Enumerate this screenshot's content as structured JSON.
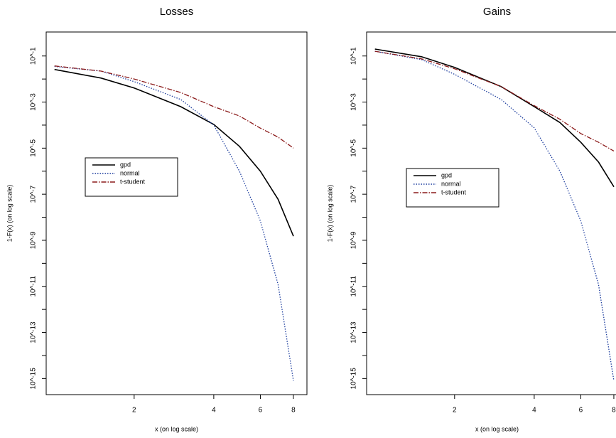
{
  "chart_data": [
    {
      "type": "line",
      "title": "Losses",
      "xlabel": "x (on log scale)",
      "ylabel": "1-F(x) (on log scale)",
      "xscale": "log",
      "yscale": "log",
      "x": [
        1,
        1.5,
        2,
        3,
        4,
        5,
        6,
        7,
        8
      ],
      "series": [
        {
          "name": "gpd",
          "color": "#000000",
          "style": "solid",
          "values": [
            0.026,
            0.011,
            0.0041,
            0.00063,
            0.000107,
            1.2e-05,
            1e-06,
            6e-08,
            1.5e-09
          ]
        },
        {
          "name": "normal",
          "color": "#1f3f9f",
          "style": "dotted",
          "values": [
            0.035,
            0.022,
            0.0077,
            0.0013,
            0.0001,
            1e-06,
            7e-09,
            1.2e-11,
            8e-16
          ]
        },
        {
          "name": "t-student",
          "color": "#8b1a1a",
          "style": "dashdot",
          "values": [
            0.037,
            0.022,
            0.01,
            0.0026,
            0.00063,
            0.00025,
            7.4e-05,
            3e-05,
            1e-05
          ]
        }
      ],
      "xlim": [
        0.93,
        9
      ],
      "ylim": [
        2e-16,
        1.1
      ],
      "xticks": [
        2,
        4,
        6,
        8
      ],
      "yticks": [
        {
          "value": 0.1,
          "label": "10^-1"
        },
        {
          "value": 0.01,
          "label": null
        },
        {
          "value": 0.001,
          "label": "10^-3"
        },
        {
          "value": 0.0001,
          "label": null
        },
        {
          "value": 1e-05,
          "label": "10^-5"
        },
        {
          "value": 1e-06,
          "label": null
        },
        {
          "value": 1e-07,
          "label": "10^-7"
        },
        {
          "value": 1e-08,
          "label": null
        },
        {
          "value": 1e-09,
          "label": "10^-9"
        },
        {
          "value": 1e-10,
          "label": null
        },
        {
          "value": 1e-11,
          "label": "10^-11"
        },
        {
          "value": 1e-12,
          "label": null
        },
        {
          "value": 1e-13,
          "label": "10^-13"
        },
        {
          "value": 1e-14,
          "label": null
        },
        {
          "value": 1e-15,
          "label": "10^-15"
        }
      ]
    },
    {
      "type": "line",
      "title": "Gains",
      "xlabel": "x (on log scale)",
      "ylabel": "1-F(x) (on log scale)",
      "xscale": "log",
      "yscale": "log",
      "x": [
        1,
        1.5,
        2,
        3,
        4,
        5,
        6,
        7,
        8
      ],
      "series": [
        {
          "name": "gpd",
          "color": "#000000",
          "style": "solid",
          "values": [
            0.2,
            0.093,
            0.032,
            0.0047,
            0.00063,
            0.00013,
            1.8e-05,
            2.5e-06,
            2.1e-07
          ]
        },
        {
          "name": "normal",
          "color": "#1f3f9f",
          "style": "dotted",
          "values": [
            0.16,
            0.07,
            0.016,
            0.0013,
            7.6e-05,
            1e-06,
            7e-09,
            1.2e-11,
            8e-16
          ]
        },
        {
          "name": "t-student",
          "color": "#8b1a1a",
          "style": "dashdot",
          "values": [
            0.16,
            0.075,
            0.028,
            0.0047,
            0.0007,
            0.00018,
            4.3e-05,
            1.8e-05,
            7.5e-06
          ]
        }
      ],
      "xlim": [
        0.93,
        9
      ],
      "ylim": [
        2e-16,
        1.1
      ],
      "xticks": [
        2,
        4,
        6,
        8
      ],
      "yticks": [
        {
          "value": 0.1,
          "label": "10^-1"
        },
        {
          "value": 0.01,
          "label": null
        },
        {
          "value": 0.001,
          "label": "10^-3"
        },
        {
          "value": 0.0001,
          "label": null
        },
        {
          "value": 1e-05,
          "label": "10^-5"
        },
        {
          "value": 1e-06,
          "label": null
        },
        {
          "value": 1e-07,
          "label": "10^-7"
        },
        {
          "value": 1e-08,
          "label": null
        },
        {
          "value": 1e-09,
          "label": "10^-9"
        },
        {
          "value": 1e-10,
          "label": null
        },
        {
          "value": 1e-11,
          "label": "10^-11"
        },
        {
          "value": 1e-12,
          "label": null
        },
        {
          "value": 1e-13,
          "label": "10^-13"
        },
        {
          "value": 1e-14,
          "label": null
        },
        {
          "value": 1e-15,
          "label": "10^-15"
        }
      ]
    }
  ]
}
